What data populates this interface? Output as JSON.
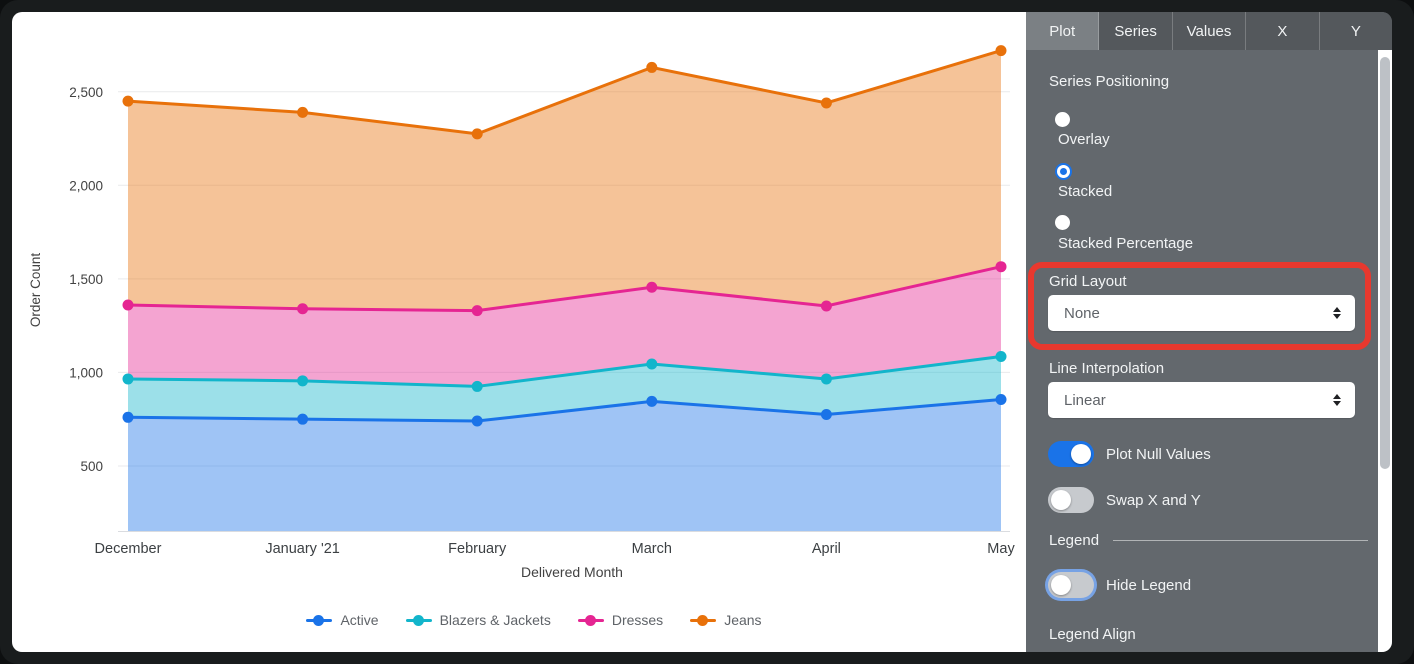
{
  "colors": {
    "accent_blue": "#1a73e8",
    "highlight_red": "#e8382e",
    "panel_background": "#63686d",
    "toggle_off": "#c7cace"
  },
  "panel": {
    "tabs": [
      {
        "label": "Plot",
        "active": true
      },
      {
        "label": "Series",
        "active": false
      },
      {
        "label": "Values",
        "active": false
      },
      {
        "label": "X",
        "active": false
      },
      {
        "label": "Y",
        "active": false
      }
    ],
    "series_positioning": {
      "label": "Series Positioning",
      "options": [
        {
          "label": "Overlay",
          "selected": false
        },
        {
          "label": "Stacked",
          "selected": true
        },
        {
          "label": "Stacked Percentage",
          "selected": false
        }
      ]
    },
    "grid_layout": {
      "label": "Grid Layout",
      "value": "None"
    },
    "line_interpolation": {
      "label": "Line Interpolation",
      "value": "Linear"
    },
    "plot_null_values": {
      "label": "Plot Null Values",
      "on": true
    },
    "swap_x_y": {
      "label": "Swap X and Y",
      "on": false
    },
    "legend_section": {
      "label": "Legend"
    },
    "hide_legend": {
      "label": "Hide Legend",
      "on": false,
      "focused": true
    },
    "legend_align": {
      "label": "Legend Align"
    }
  },
  "chart_data": {
    "type": "area",
    "stacking": "stacked",
    "title": "",
    "xlabel": "Delivered Month",
    "ylabel": "Order Count",
    "categories": [
      "December",
      "January '21",
      "February",
      "March",
      "April",
      "May"
    ],
    "yticks": [
      500,
      1000,
      1500,
      2000,
      2500
    ],
    "ylim": [
      150,
      2925
    ],
    "grid": true,
    "legend_position": "bottom",
    "series": [
      {
        "name": "Active",
        "color": "#1a73e8",
        "values": [
          760,
          750,
          740,
          845,
          775,
          855
        ],
        "cumulative": [
          760,
          750,
          740,
          845,
          775,
          855
        ]
      },
      {
        "name": "Blazers & Jackets",
        "color": "#12b5cb",
        "values": [
          205,
          205,
          185,
          200,
          190,
          230
        ],
        "cumulative": [
          965,
          955,
          925,
          1045,
          965,
          1085
        ]
      },
      {
        "name": "Dresses",
        "color": "#e52592",
        "values": [
          395,
          385,
          405,
          410,
          390,
          480
        ],
        "cumulative": [
          1360,
          1340,
          1330,
          1455,
          1355,
          1565
        ]
      },
      {
        "name": "Jeans",
        "color": "#e8710a",
        "values": [
          1090,
          1050,
          945,
          1175,
          1085,
          1155
        ],
        "cumulative": [
          2450,
          2390,
          2275,
          2630,
          2440,
          2720
        ]
      }
    ]
  }
}
